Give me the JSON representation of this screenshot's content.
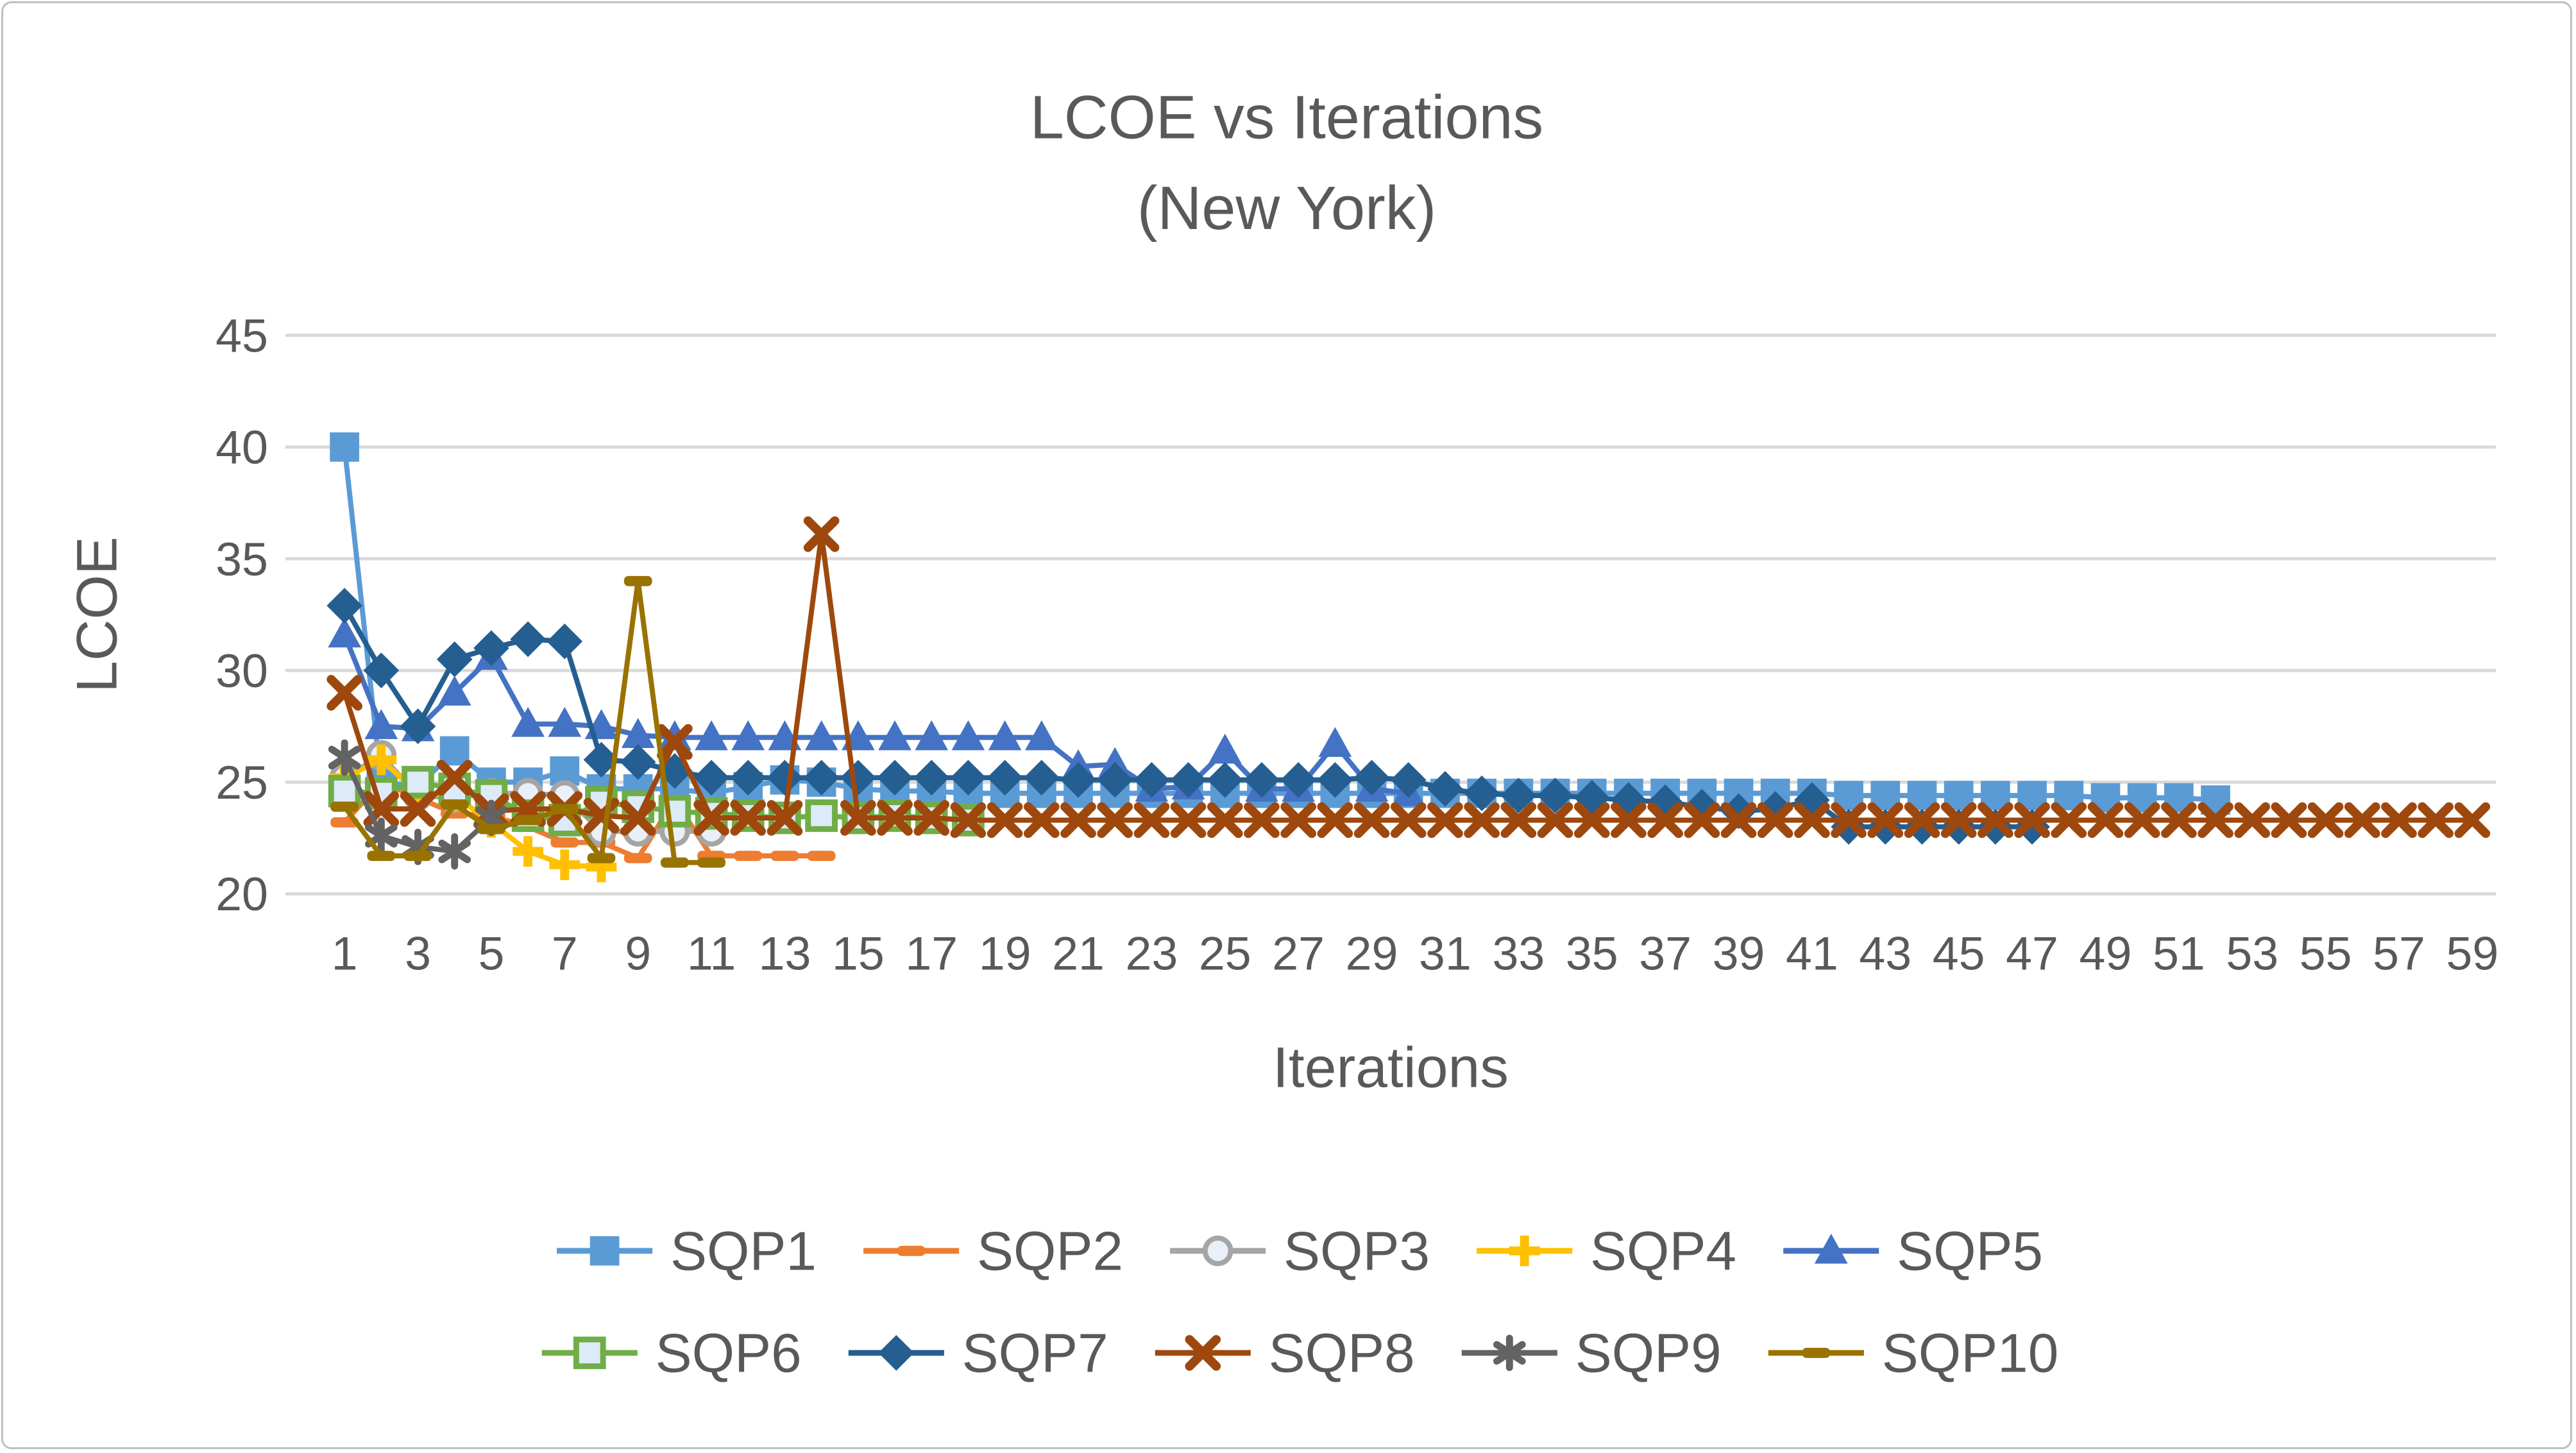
{
  "styles": {
    "text_color": "#595959",
    "grid_color": "#D9D9D9",
    "border_color": "#BFBFBF",
    "background": "#FFFFFF"
  },
  "chart_data": {
    "type": "line",
    "title_line1": "LCOE vs Iterations",
    "title_line2": "(New York)",
    "xlabel": "Iterations",
    "ylabel": "LCOE",
    "ylim": [
      20,
      45
    ],
    "yticks": [
      45,
      40,
      35,
      30,
      25,
      20
    ],
    "xticks": [
      1,
      3,
      5,
      7,
      9,
      11,
      13,
      15,
      17,
      19,
      21,
      23,
      25,
      27,
      29,
      31,
      33,
      35,
      37,
      39,
      41,
      43,
      45,
      47,
      49,
      51,
      53,
      55,
      57,
      59
    ],
    "x_start": 1,
    "x_step": 1,
    "grid": true,
    "legend_position": "bottom-two-rows",
    "series": [
      {
        "name": "SQP1",
        "color": "#5B9BD5",
        "marker": "square",
        "values": [
          40,
          25,
          24.8,
          26.4,
          25,
          25,
          25.5,
          24.7,
          24.7,
          24.7,
          24.5,
          24.8,
          25.1,
          25,
          24.7,
          24.6,
          24.6,
          24.5,
          24.5,
          24.5,
          24.5,
          24.5,
          24.5,
          24.5,
          24.5,
          24.5,
          24.5,
          24.5,
          24.5,
          24.5,
          24.5,
          24.5,
          24.5,
          24.5,
          24.5,
          24.5,
          24.5,
          24.5,
          24.5,
          24.5,
          24.5,
          24.4,
          24.4,
          24.4,
          24.4,
          24.4,
          24.4,
          24.4,
          24.3,
          24.3,
          24.3,
          24.2
        ]
      },
      {
        "name": "SQP2",
        "color": "#ED7D31",
        "marker": "dash",
        "values": [
          23.2,
          25,
          24.3,
          23.6,
          23.5,
          23,
          22.3,
          22.3,
          21.6,
          24.2,
          21.7,
          21.7,
          21.7,
          21.7
        ]
      },
      {
        "name": "SQP3",
        "color": "#A5A5A5",
        "marker": "circle",
        "values": [
          25.2,
          26.2,
          24.4,
          24.3,
          24.5,
          24.5,
          24.4,
          22.8,
          22.8,
          22.8,
          22.8
        ]
      },
      {
        "name": "SQP4",
        "color": "#FFC000",
        "marker": "plus",
        "values": [
          25.2,
          26,
          24.5,
          24.4,
          23.2,
          21.9,
          21.3,
          21.2
        ]
      },
      {
        "name": "SQP5",
        "color": "#4472C4",
        "marker": "triangle",
        "values": [
          31.6,
          27.5,
          27.4,
          29,
          30.6,
          27.6,
          27.6,
          27.5,
          27.1,
          27,
          27,
          27,
          27,
          27,
          27,
          27,
          27,
          27,
          27,
          27,
          25.7,
          25.8,
          24.7,
          24.8,
          26.4,
          24.7,
          24.7,
          26.7,
          24.7,
          24.5
        ]
      },
      {
        "name": "SQP6",
        "color": "#70AD47",
        "marker": "square-open",
        "values": [
          24.6,
          24.5,
          25,
          24.7,
          24.4,
          23.5,
          23.3,
          24.1,
          23.9,
          23.7,
          23.6,
          23.5,
          23.4,
          23.5,
          23.4,
          23.5,
          23.4,
          23.3
        ]
      },
      {
        "name": "SQP7",
        "color": "#255E91",
        "marker": "diamond",
        "values": [
          32.9,
          30,
          27.5,
          30.5,
          31,
          31.4,
          31.3,
          26,
          25.9,
          25.5,
          25.2,
          25.2,
          25.2,
          25.2,
          25.2,
          25.2,
          25.2,
          25.2,
          25.2,
          25.2,
          25.1,
          25.1,
          25.1,
          25.1,
          25.1,
          25.1,
          25.1,
          25.1,
          25.2,
          25.1,
          24.7,
          24.5,
          24.4,
          24.4,
          24.3,
          24.2,
          24.1,
          23.9,
          23.7,
          23.8,
          24.2,
          23,
          23,
          23,
          23,
          23,
          23
        ]
      },
      {
        "name": "SQP8",
        "color": "#9E480E",
        "marker": "x",
        "values": [
          29,
          23.8,
          23.8,
          25.2,
          23.7,
          23.8,
          23.8,
          23.5,
          23.4,
          26.8,
          23.4,
          23.4,
          23.4,
          36.1,
          23.4,
          23.4,
          23.4,
          23.3,
          23.3,
          23.3,
          23.3,
          23.3,
          23.3,
          23.3,
          23.3,
          23.3,
          23.3,
          23.3,
          23.3,
          23.3,
          23.3,
          23.3,
          23.3,
          23.3,
          23.3,
          23.3,
          23.3,
          23.3,
          23.3,
          23.3,
          23.3,
          23.3,
          23.3,
          23.3,
          23.3,
          23.3,
          23.3,
          23.3,
          23.3,
          23.3,
          23.3,
          23.3,
          23.3,
          23.3,
          23.3,
          23.3,
          23.3,
          23.3,
          23.3
        ]
      },
      {
        "name": "SQP9",
        "color": "#636363",
        "marker": "asterisk",
        "values": [
          26.1,
          22.6,
          22.1,
          21.9,
          23.4
        ]
      },
      {
        "name": "SQP10",
        "color": "#997300",
        "marker": "dash",
        "values": [
          23.9,
          21.7,
          21.7,
          24,
          22.9,
          23.3,
          23.8,
          21.6,
          34,
          21.4,
          21.4
        ]
      }
    ]
  }
}
